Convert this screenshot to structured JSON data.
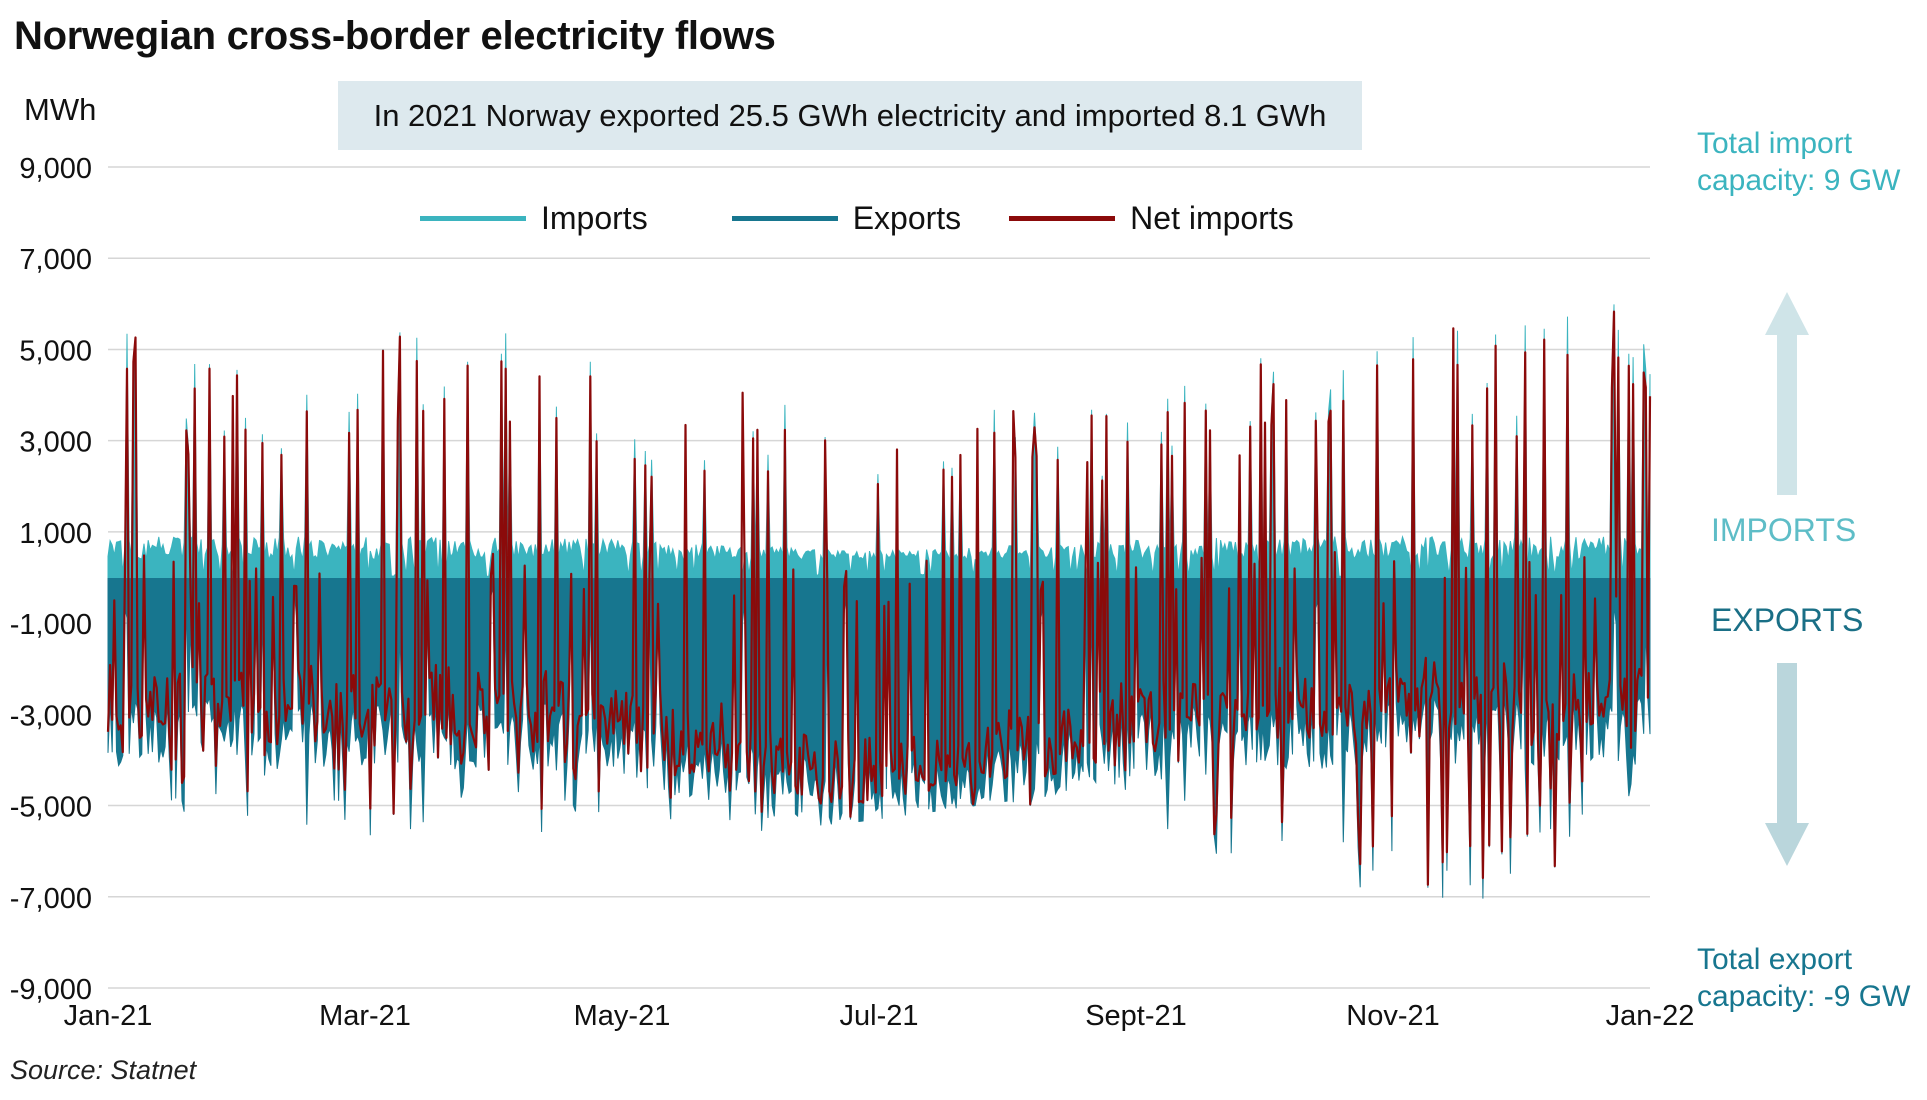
{
  "chart_data": {
    "type": "line",
    "title": "Norwegian cross-border electricity flows",
    "ylabel": "MWh",
    "annotation": "In 2021 Norway exported 25.5 GWh electricity and imported 8.1 GWh",
    "ylim": [
      -9000,
      9000
    ],
    "yticks": [
      9000,
      7000,
      5000,
      3000,
      1000,
      -1000,
      -3000,
      -5000,
      -7000,
      -9000
    ],
    "ytick_labels": [
      "9,000",
      "7,000",
      "5,000",
      "3,000",
      "1,000",
      "-1,000",
      "-3,000",
      "-5,000",
      "-7,000",
      "-9,000"
    ],
    "xtick_labels": [
      "Jan-21",
      "Mar-21",
      "May-21",
      "Jul-21",
      "Sept-21",
      "Nov-21",
      "Jan-22"
    ],
    "grid": "horizontal",
    "legend_position": "top",
    "series": [
      {
        "name": "Imports",
        "color": "#3bb4bf",
        "month_upper_envelope": [
          5600,
          4800,
          5700,
          6100,
          4800,
          4300,
          3700,
          4100,
          3600,
          5300,
          5400,
          6100,
          6100
        ],
        "baseline": 0
      },
      {
        "name": "Exports",
        "color": "#17768f",
        "month_lower_envelope": [
          -6200,
          -5200,
          -5700,
          -5400,
          -6600,
          -5600,
          -5300,
          -4900,
          -5500,
          -6500,
          -7400,
          -7200,
          -5000
        ],
        "baseline": 0
      },
      {
        "name": "Net imports",
        "color": "#8b0a0a",
        "month_upper_envelope": [
          5600,
          4800,
          5700,
          6100,
          4800,
          4300,
          3700,
          4100,
          3600,
          5100,
          5100,
          5900,
          5900
        ],
        "month_lower_envelope": [
          -6300,
          -5300,
          -5700,
          -5400,
          -6600,
          -5600,
          -5300,
          -4900,
          -5500,
          -6500,
          -7500,
          -7300,
          -5000
        ]
      }
    ]
  },
  "side_labels": {
    "import_capacity": [
      "Total import",
      "capacity: 9 GW"
    ],
    "export_capacity": [
      "Total export",
      "capacity: -9 GW"
    ],
    "imports_word": "IMPORTS",
    "exports_word": "EXPORTS"
  },
  "arrow_colors": {
    "up": "#cfe4e8",
    "down": "#bad6dc"
  },
  "source": "Source: Statnet"
}
